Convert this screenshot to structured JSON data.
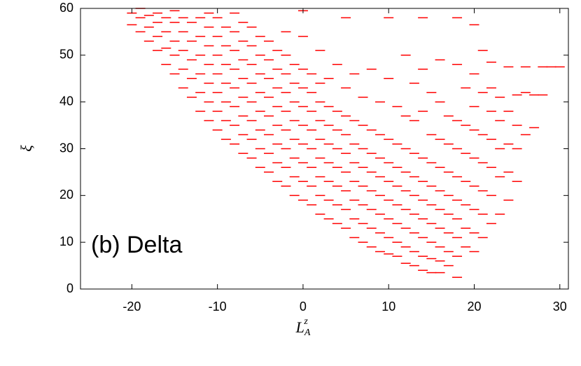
{
  "chart_data": {
    "type": "scatter",
    "annotation": "(b) Delta",
    "ylabel": "ξ",
    "xlabel": {
      "text": "L",
      "sub": "A",
      "sup": "z"
    },
    "color": "#ff0000",
    "xlim": [
      -26,
      31
    ],
    "ylim": [
      0,
      60
    ],
    "xticks": [
      -20,
      -10,
      0,
      10,
      20,
      30
    ],
    "yticks": [
      0,
      10,
      20,
      30,
      40,
      50,
      60
    ],
    "x": [
      -20,
      -20,
      -19,
      -19,
      -19,
      -18,
      -18,
      -18,
      -17,
      -17,
      -17,
      -17,
      -16,
      -16,
      -16,
      -16,
      -15,
      -15,
      -15,
      -15,
      -15,
      -14,
      -14,
      -14,
      -14,
      -14,
      -13,
      -13,
      -13,
      -13,
      -13,
      -12,
      -12,
      -12,
      -12,
      -12,
      -12,
      -11,
      -11,
      -11,
      -11,
      -11,
      -11,
      -11,
      -10,
      -10,
      -10,
      -10,
      -10,
      -10,
      -10,
      -9,
      -9,
      -9,
      -9,
      -9,
      -9,
      -9,
      -8,
      -8,
      -8,
      -8,
      -8,
      -8,
      -8,
      -8,
      -7,
      -7,
      -7,
      -7,
      -7,
      -7,
      -7,
      -7,
      -6,
      -6,
      -6,
      -6,
      -6,
      -6,
      -6,
      -6,
      -5,
      -5,
      -5,
      -5,
      -5,
      -5,
      -5,
      -5,
      -4,
      -4,
      -4,
      -4,
      -4,
      -4,
      -4,
      -4,
      -3,
      -3,
      -3,
      -3,
      -3,
      -3,
      -3,
      -3,
      -2,
      -2,
      -2,
      -2,
      -2,
      -2,
      -2,
      -2,
      -2,
      -1,
      -1,
      -1,
      -1,
      -1,
      -1,
      -1,
      -1,
      0,
      0,
      0,
      0,
      0,
      0,
      0,
      0,
      0,
      0,
      1,
      1,
      1,
      1,
      1,
      1,
      1,
      1,
      2,
      2,
      2,
      2,
      2,
      2,
      2,
      2,
      2,
      3,
      3,
      3,
      3,
      3,
      3,
      3,
      3,
      4,
      4,
      4,
      4,
      4,
      4,
      4,
      4,
      5,
      5,
      5,
      5,
      5,
      5,
      5,
      5,
      5,
      6,
      6,
      6,
      6,
      6,
      6,
      6,
      6,
      7,
      7,
      7,
      7,
      7,
      7,
      7,
      7,
      8,
      8,
      8,
      8,
      8,
      8,
      8,
      8,
      9,
      9,
      9,
      9,
      9,
      9,
      9,
      9,
      10,
      10,
      10,
      10,
      10,
      10,
      10,
      10,
      10,
      11,
      11,
      11,
      11,
      11,
      11,
      11,
      11,
      12,
      12,
      12,
      12,
      12,
      12,
      12,
      12,
      12,
      13,
      13,
      13,
      13,
      13,
      13,
      13,
      13,
      13,
      14,
      14,
      14,
      14,
      14,
      14,
      14,
      14,
      14,
      14,
      15,
      15,
      15,
      15,
      15,
      15,
      15,
      15,
      15,
      16,
      16,
      16,
      16,
      16,
      16,
      16,
      16,
      16,
      16,
      17,
      17,
      17,
      17,
      17,
      17,
      17,
      17,
      18,
      18,
      18,
      18,
      18,
      18,
      18,
      18,
      18,
      18,
      19,
      19,
      19,
      19,
      19,
      19,
      19,
      20,
      20,
      20,
      20,
      20,
      20,
      20,
      20,
      20,
      21,
      21,
      21,
      21,
      21,
      21,
      21,
      22,
      22,
      22,
      22,
      22,
      22,
      22,
      23,
      23,
      23,
      23,
      23,
      24,
      24,
      24,
      24,
      24,
      25,
      25,
      25,
      25,
      26,
      26,
      26,
      27,
      27,
      28,
      28,
      29,
      30
    ],
    "values": [
      56.5,
      59,
      55,
      58,
      60,
      53,
      56,
      58.5,
      51,
      54,
      57,
      59,
      48,
      51.5,
      55,
      58,
      46,
      50,
      53,
      57,
      59.5,
      43,
      47,
      51,
      55,
      58,
      41,
      45,
      49,
      53,
      57,
      38,
      42,
      46,
      50,
      54,
      58,
      36,
      40,
      44,
      48,
      52,
      56,
      59,
      34,
      38,
      42,
      46,
      50,
      54,
      58,
      32,
      36,
      40,
      44,
      48,
      52,
      56,
      31,
      35,
      39,
      43,
      47,
      51,
      55,
      59,
      29,
      33,
      37,
      41,
      45,
      49,
      53,
      57,
      28,
      32,
      36,
      40,
      44,
      48,
      52,
      56,
      26,
      30,
      34,
      38,
      42,
      46,
      50,
      54,
      25,
      29,
      33,
      37,
      41,
      45,
      49,
      53,
      23,
      27,
      31,
      35,
      39,
      43,
      47,
      51,
      22,
      26,
      30,
      34,
      38,
      42,
      46,
      50,
      55,
      20,
      24,
      28,
      32,
      36,
      40,
      44,
      48,
      19,
      23,
      27,
      31,
      35,
      39,
      43,
      47,
      54,
      59.5,
      18,
      22,
      26,
      30,
      34,
      38,
      42,
      46,
      16,
      20,
      24,
      28,
      32,
      36,
      40,
      44,
      51,
      15,
      19,
      23,
      27,
      31,
      35,
      39,
      45,
      14,
      18,
      22,
      26,
      30,
      34,
      38,
      48,
      13,
      17,
      21,
      25,
      29,
      33,
      37,
      43,
      58,
      11,
      15,
      19,
      23,
      27,
      31,
      36,
      46,
      10,
      14,
      18,
      22,
      26,
      30,
      35,
      41,
      9,
      13,
      17,
      21,
      25,
      29,
      34,
      47,
      8,
      12,
      16,
      20,
      24,
      28,
      33,
      40,
      7.5,
      11,
      15,
      19,
      23,
      27,
      32,
      45,
      58,
      7,
      10,
      14,
      18,
      22,
      26,
      31,
      39,
      5.5,
      9,
      13,
      17,
      21,
      25,
      30,
      37,
      50,
      5,
      8,
      12,
      16,
      20,
      24,
      29,
      36,
      44,
      4,
      7,
      11,
      15,
      19,
      23,
      28,
      38,
      47,
      58,
      3.5,
      6.5,
      10,
      14,
      18,
      22,
      27,
      33,
      42,
      3.5,
      6,
      9,
      13,
      17,
      21,
      26,
      32,
      40,
      49,
      5,
      8,
      12,
      16,
      20,
      25,
      31,
      37,
      2.5,
      7,
      11,
      15,
      19,
      24,
      30,
      36,
      48,
      58,
      9,
      13,
      18,
      23,
      29,
      35,
      43,
      8,
      12,
      17,
      22,
      28,
      34,
      39,
      46,
      56.5,
      11,
      16,
      21,
      27,
      33,
      42,
      51,
      14,
      20,
      26,
      32,
      38,
      43,
      48.5,
      16,
      24,
      30,
      36,
      41,
      19,
      25,
      31,
      38,
      47.5,
      23,
      30,
      35,
      41.5,
      33,
      42,
      47.5,
      34.5,
      41.5,
      41.5,
      47.5,
      47.5,
      47.5
    ]
  }
}
